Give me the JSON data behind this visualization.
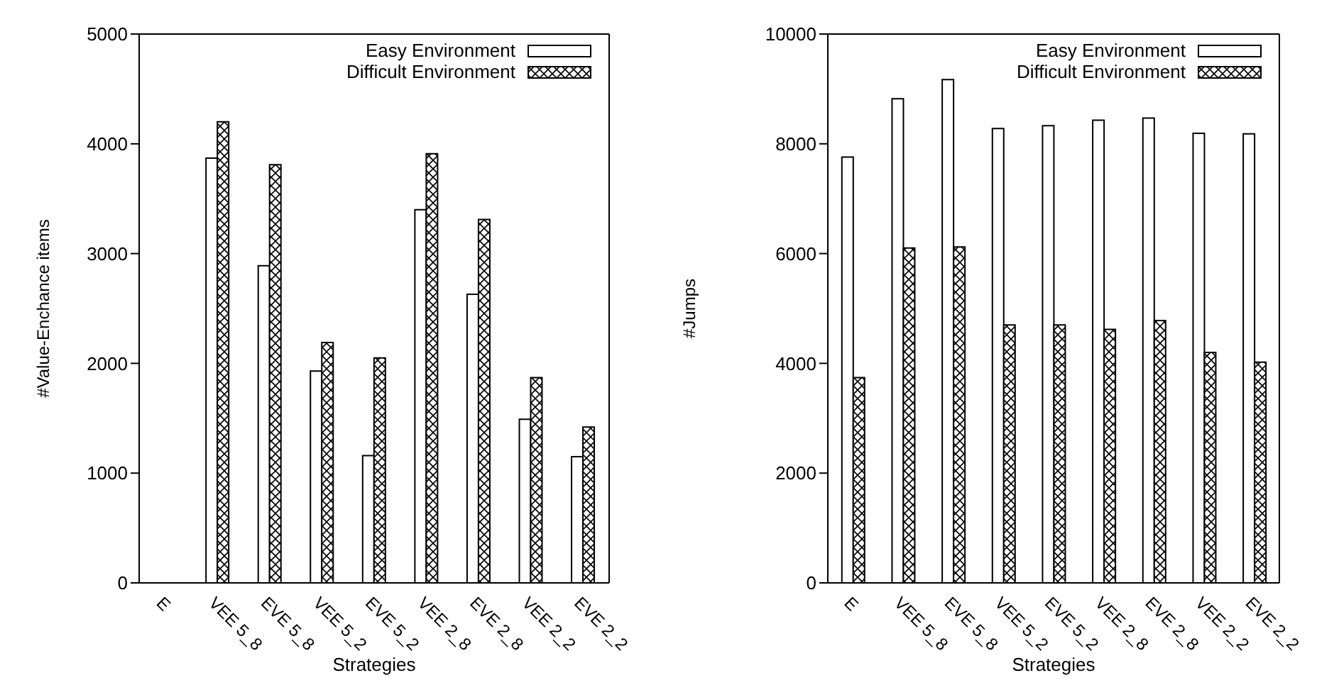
{
  "chart_data": [
    {
      "type": "bar",
      "xlabel": "Strategies",
      "ylabel": "#Value-Enchance items",
      "categories": [
        "E",
        "VEE 5_8",
        "EVE 5_8",
        "VEE 5_2",
        "EVE 5_2",
        "VEE 2_8",
        "EVE 2_8",
        "VEE 2_2",
        "EVE 2_2"
      ],
      "series": [
        {
          "name": "Easy Environment",
          "color": "#ffffff",
          "values": [
            0,
            3870,
            2890,
            1930,
            1160,
            3400,
            2630,
            1490,
            1150
          ]
        },
        {
          "name": "Difficult Environment",
          "color": "#000000",
          "values": [
            0,
            4200,
            3810,
            2190,
            2050,
            3910,
            3310,
            1870,
            1420
          ]
        }
      ],
      "ylim": [
        0,
        5000
      ],
      "yticks": [
        0,
        1000,
        2000,
        3000,
        4000,
        5000
      ],
      "grid": false,
      "legend": "top right"
    },
    {
      "type": "bar",
      "xlabel": "Strategies",
      "ylabel": "#Jumps",
      "categories": [
        "E",
        "VEE 5_8",
        "EVE 5_8",
        "VEE 5_2",
        "EVE 5_2",
        "VEE 2_8",
        "EVE 2_8",
        "VEE 2_2",
        "EVE 2_2"
      ],
      "series": [
        {
          "name": "Easy Environment",
          "color": "#ffffff",
          "values": [
            7760,
            8820,
            9170,
            8280,
            8330,
            8430,
            8470,
            8190,
            8180
          ]
        },
        {
          "name": "Difficult Environment",
          "color": "#000000",
          "values": [
            3740,
            6100,
            6120,
            4700,
            4700,
            4620,
            4780,
            4200,
            4020
          ]
        }
      ],
      "ylim": [
        0,
        10000
      ],
      "yticks": [
        0,
        2000,
        4000,
        6000,
        8000,
        10000
      ],
      "grid": false,
      "legend": "top right"
    }
  ]
}
